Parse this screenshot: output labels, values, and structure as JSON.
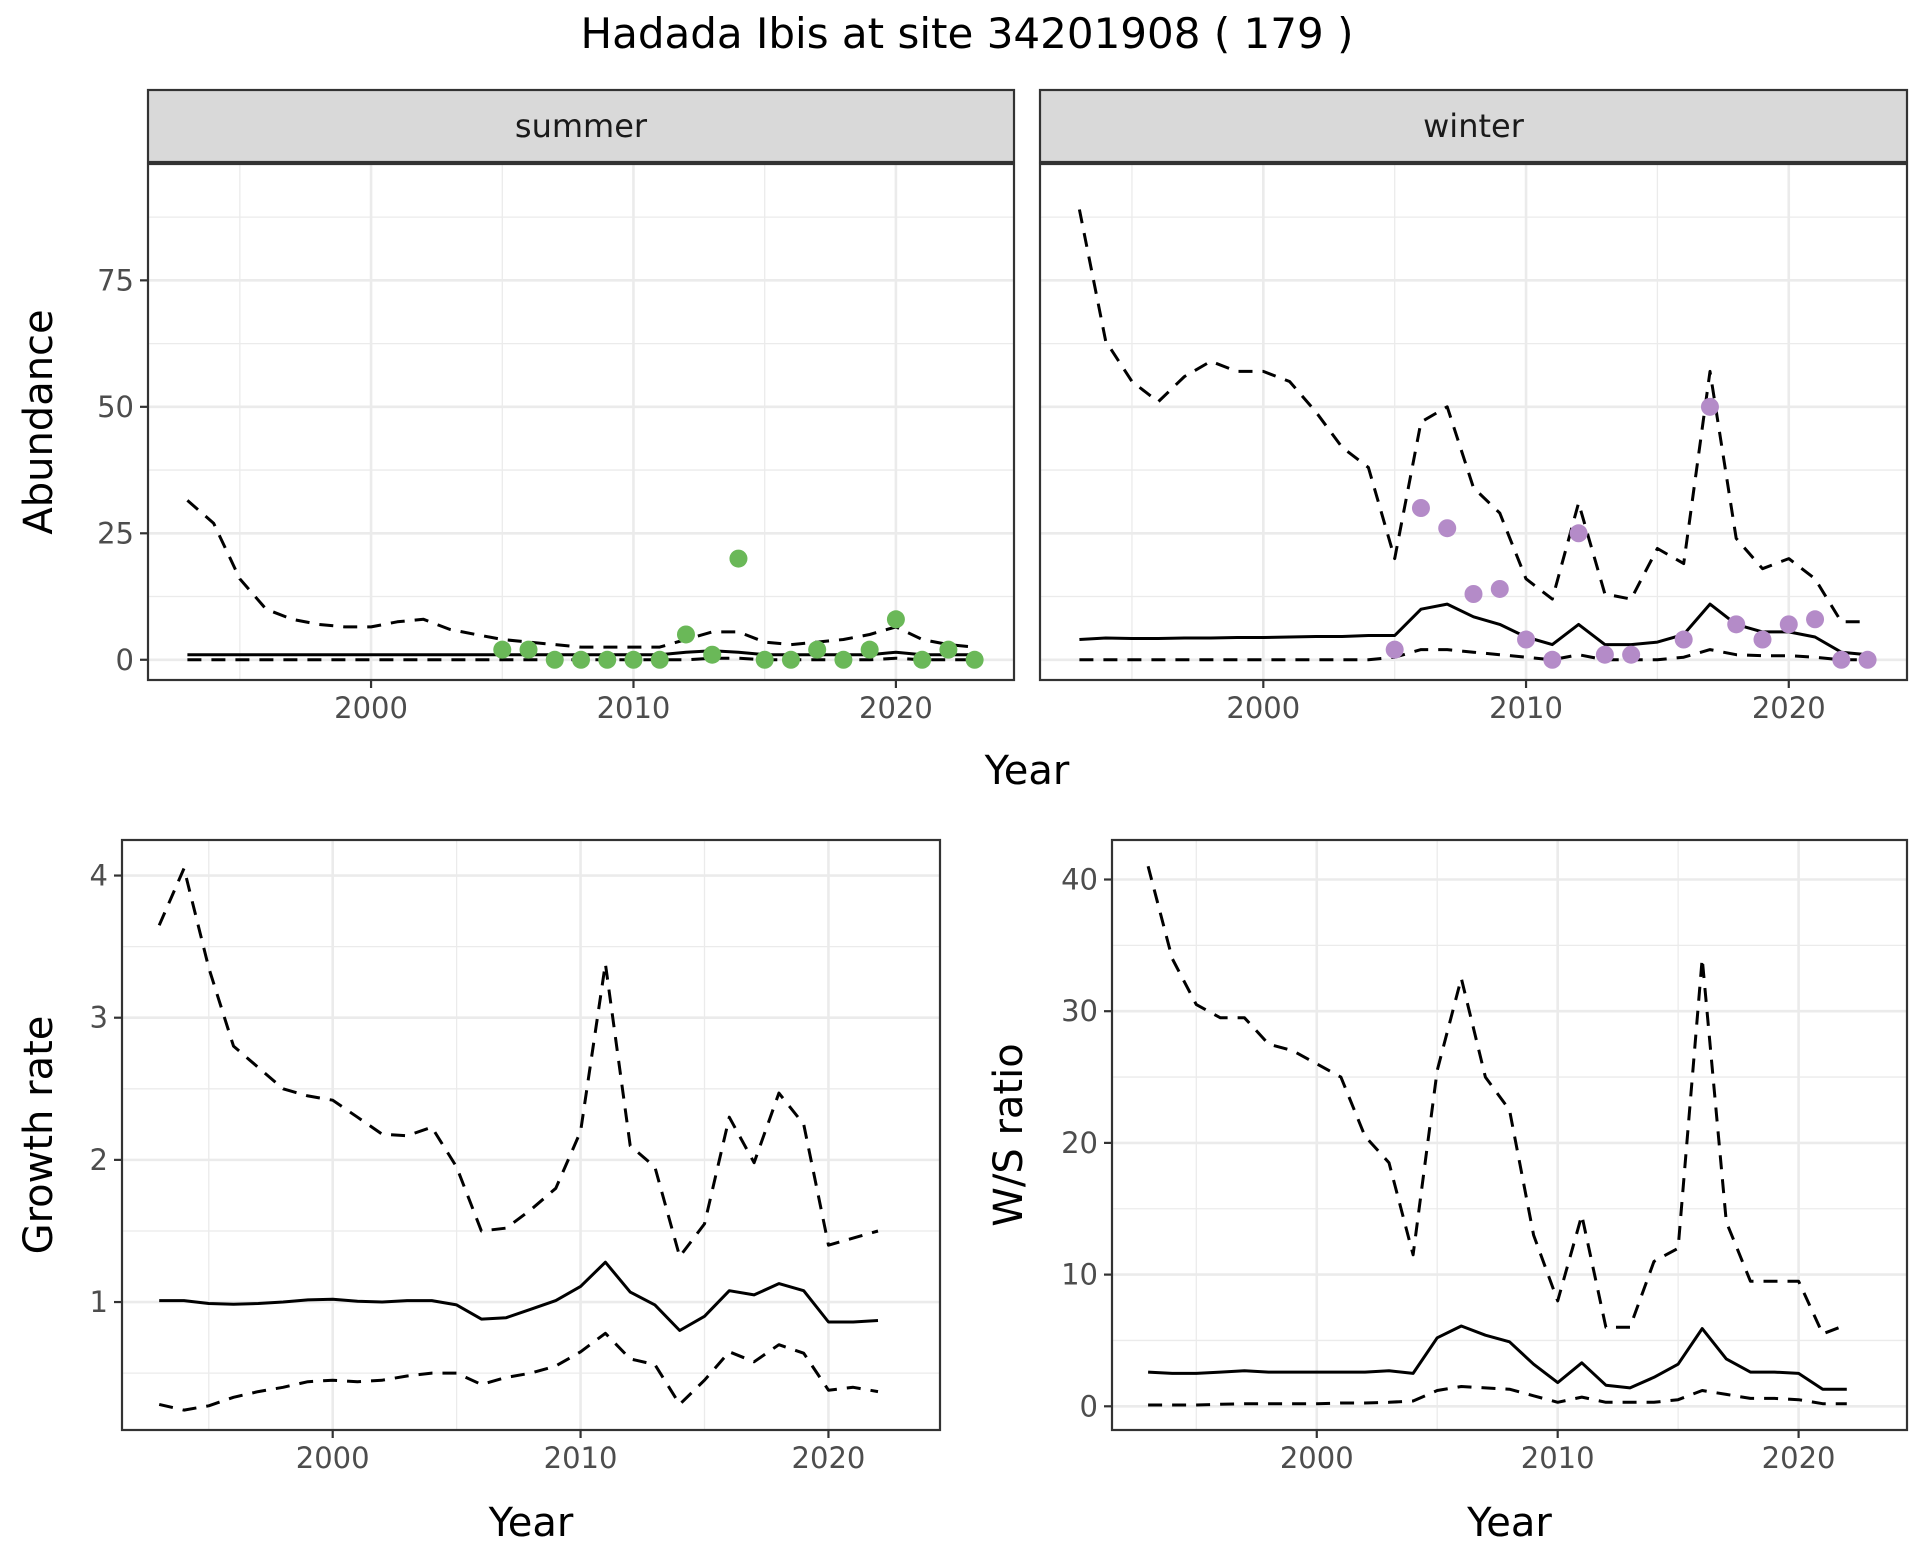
{
  "title": "Hadada Ibis at site 34201908 ( 179 )",
  "colors": {
    "summer_points": "#6ab858",
    "winter_points": "#b48bc8",
    "lines": "#000000",
    "strip": "#d9d9d9"
  },
  "chart_data": [
    {
      "type": "line",
      "facet": "summer",
      "xlabel": "Year",
      "ylabel": "Abundance",
      "xlim": [
        1991.5,
        2024.5
      ],
      "ylim": [
        -4,
        98
      ],
      "xticks": [
        2000,
        2010,
        2020
      ],
      "yticks": [
        0,
        25,
        50,
        75
      ],
      "grid": true,
      "x": [
        1993,
        1994,
        1995,
        1996,
        1997,
        1998,
        1999,
        2000,
        2001,
        2002,
        2003,
        2004,
        2005,
        2006,
        2007,
        2008,
        2009,
        2010,
        2011,
        2012,
        2013,
        2014,
        2015,
        2016,
        2017,
        2018,
        2019,
        2020,
        2021,
        2022,
        2023
      ],
      "series": [
        {
          "role": "estimate",
          "style": "solid",
          "values": [
            1,
            1,
            1,
            1,
            1,
            1,
            1,
            1,
            1,
            1,
            1,
            1,
            1,
            1,
            1,
            1,
            1,
            1,
            1,
            1.5,
            1.8,
            1.5,
            1,
            1,
            1,
            1,
            1,
            1.5,
            1,
            1,
            1
          ]
        },
        {
          "role": "upper",
          "style": "dashed",
          "values": [
            31.5,
            27,
            16,
            10,
            8,
            7,
            6.5,
            6.5,
            7.5,
            8,
            6,
            5,
            4,
            3.5,
            3,
            2.5,
            2.5,
            2.5,
            2.5,
            4,
            5.5,
            5.5,
            3.5,
            3,
            3.5,
            4,
            5,
            6.5,
            4,
            3,
            2.5
          ]
        },
        {
          "role": "lower",
          "style": "dashed",
          "values": [
            0,
            0,
            0,
            0,
            0,
            0,
            0,
            0,
            0,
            0,
            0,
            0,
            0,
            0,
            0,
            0,
            0,
            0,
            0,
            0,
            0.3,
            0.3,
            0,
            0,
            0,
            0,
            0,
            0.3,
            0,
            0,
            0
          ]
        }
      ],
      "points": {
        "x": [
          2005,
          2006,
          2007,
          2008,
          2009,
          2010,
          2011,
          2012,
          2013,
          2014,
          2015,
          2016,
          2017,
          2018,
          2019,
          2020,
          2021,
          2022,
          2023
        ],
        "y": [
          2,
          2,
          0,
          0,
          0,
          0,
          0,
          5,
          1,
          20,
          0,
          0,
          2,
          0,
          2,
          8,
          0,
          2,
          0
        ]
      }
    },
    {
      "type": "line",
      "facet": "winter",
      "xlabel": "Year",
      "ylabel": "Abundance",
      "xlim": [
        1991.5,
        2024.5
      ],
      "ylim": [
        -4,
        98
      ],
      "xticks": [
        2000,
        2010,
        2020
      ],
      "yticks": [
        0,
        25,
        50,
        75
      ],
      "grid": true,
      "x": [
        1993,
        1994,
        1995,
        1996,
        1997,
        1998,
        1999,
        2000,
        2001,
        2002,
        2003,
        2004,
        2005,
        2006,
        2007,
        2008,
        2009,
        2010,
        2011,
        2012,
        2013,
        2014,
        2015,
        2016,
        2017,
        2018,
        2019,
        2020,
        2021,
        2022,
        2023
      ],
      "series": [
        {
          "role": "estimate",
          "style": "solid",
          "values": [
            4,
            4.3,
            4.2,
            4.2,
            4.3,
            4.3,
            4.4,
            4.4,
            4.5,
            4.6,
            4.6,
            4.8,
            4.8,
            10,
            11,
            8.5,
            7,
            4.5,
            3,
            7,
            3,
            3,
            3.5,
            5,
            11,
            7,
            5.5,
            5.5,
            4.5,
            1.5,
            1
          ]
        },
        {
          "role": "upper",
          "style": "dashed",
          "values": [
            89,
            63,
            55,
            51,
            56,
            59,
            57,
            57,
            55,
            49,
            42,
            38,
            20,
            47,
            50,
            34,
            29,
            16,
            12,
            31,
            13,
            12,
            22,
            19,
            57,
            24,
            18,
            20,
            16,
            7.5,
            7.5
          ]
        },
        {
          "role": "lower",
          "style": "dashed",
          "values": [
            0,
            0,
            0,
            0,
            0,
            0,
            0,
            0,
            0,
            0,
            0,
            0,
            0.5,
            2,
            2,
            1.5,
            1,
            0.5,
            0,
            1,
            0,
            0,
            0,
            0.5,
            2,
            1,
            0.8,
            0.8,
            0.5,
            0,
            0
          ]
        }
      ],
      "points": {
        "x": [
          2005,
          2006,
          2007,
          2008,
          2009,
          2010,
          2011,
          2012,
          2013,
          2014,
          2016,
          2017,
          2018,
          2019,
          2020,
          2021,
          2022,
          2023
        ],
        "y": [
          2,
          30,
          26,
          13,
          14,
          4,
          0,
          25,
          1,
          1,
          4,
          50,
          7,
          4,
          7,
          8,
          0,
          0
        ]
      }
    },
    {
      "type": "line",
      "xlabel": "Year",
      "ylabel": "Growth rate",
      "xlim": [
        1991.5,
        2024.5
      ],
      "ylim": [
        0.1,
        4.25
      ],
      "xticks": [
        2000,
        2010,
        2020
      ],
      "yticks": [
        1,
        2,
        3,
        4
      ],
      "grid": true,
      "x": [
        1993,
        1994,
        1995,
        1996,
        1997,
        1998,
        1999,
        2000,
        2001,
        2002,
        2003,
        2004,
        2005,
        2006,
        2007,
        2008,
        2009,
        2010,
        2011,
        2012,
        2013,
        2014,
        2015,
        2016,
        2017,
        2018,
        2019,
        2020,
        2021,
        2022
      ],
      "series": [
        {
          "role": "estimate",
          "style": "solid",
          "values": [
            1.01,
            1.01,
            0.99,
            0.985,
            0.99,
            1.0,
            1.015,
            1.02,
            1.005,
            1.0,
            1.01,
            1.01,
            0.98,
            0.88,
            0.89,
            0.95,
            1.01,
            1.11,
            1.28,
            1.07,
            0.98,
            0.8,
            0.9,
            1.08,
            1.05,
            1.13,
            1.08,
            0.86,
            0.86,
            0.87
          ]
        },
        {
          "role": "upper",
          "style": "dashed",
          "values": [
            3.65,
            4.05,
            3.35,
            2.8,
            2.65,
            2.5,
            2.45,
            2.42,
            2.3,
            2.18,
            2.17,
            2.23,
            1.95,
            1.5,
            1.52,
            1.65,
            1.8,
            2.2,
            3.38,
            2.1,
            1.95,
            1.32,
            1.55,
            2.3,
            1.98,
            2.47,
            2.25,
            1.4,
            1.45,
            1.5
          ]
        },
        {
          "role": "lower",
          "style": "dashed",
          "values": [
            0.28,
            0.24,
            0.27,
            0.33,
            0.37,
            0.4,
            0.44,
            0.45,
            0.44,
            0.45,
            0.48,
            0.5,
            0.5,
            0.42,
            0.47,
            0.5,
            0.55,
            0.65,
            0.78,
            0.6,
            0.56,
            0.28,
            0.45,
            0.65,
            0.58,
            0.7,
            0.64,
            0.38,
            0.4,
            0.37
          ]
        }
      ]
    },
    {
      "type": "line",
      "xlabel": "Year",
      "ylabel": "W/S ratio",
      "xlim": [
        1991.5,
        2024.5
      ],
      "ylim": [
        -1.8,
        43
      ],
      "xticks": [
        2000,
        2010,
        2020
      ],
      "yticks": [
        0,
        10,
        20,
        30,
        40
      ],
      "grid": true,
      "x": [
        1993,
        1994,
        1995,
        1996,
        1997,
        1998,
        1999,
        2000,
        2001,
        2002,
        2003,
        2004,
        2005,
        2006,
        2007,
        2008,
        2009,
        2010,
        2011,
        2012,
        2013,
        2014,
        2015,
        2016,
        2017,
        2018,
        2019,
        2020,
        2021,
        2022
      ],
      "series": [
        {
          "role": "estimate",
          "style": "solid",
          "values": [
            2.6,
            2.5,
            2.5,
            2.6,
            2.7,
            2.6,
            2.6,
            2.6,
            2.6,
            2.6,
            2.7,
            2.5,
            5.2,
            6.1,
            5.4,
            4.9,
            3.2,
            1.8,
            3.3,
            1.6,
            1.4,
            2.2,
            3.2,
            5.9,
            3.6,
            2.6,
            2.6,
            2.5,
            1.3,
            1.3
          ]
        },
        {
          "role": "upper",
          "style": "dashed",
          "values": [
            41,
            34,
            30.5,
            29.5,
            29.5,
            27.5,
            27,
            26,
            25,
            20.5,
            18.5,
            11.5,
            25.5,
            32.5,
            25,
            22.5,
            13,
            8,
            14.5,
            6,
            6,
            11,
            12,
            34,
            14,
            9.5,
            9.5,
            9.5,
            5.5,
            6.2
          ]
        },
        {
          "role": "lower",
          "style": "dashed",
          "values": [
            0.1,
            0.1,
            0.1,
            0.15,
            0.2,
            0.2,
            0.2,
            0.2,
            0.25,
            0.25,
            0.3,
            0.4,
            1.2,
            1.5,
            1.4,
            1.3,
            0.8,
            0.3,
            0.7,
            0.3,
            0.3,
            0.3,
            0.5,
            1.2,
            0.9,
            0.6,
            0.6,
            0.5,
            0.2,
            0.2
          ]
        }
      ]
    }
  ]
}
